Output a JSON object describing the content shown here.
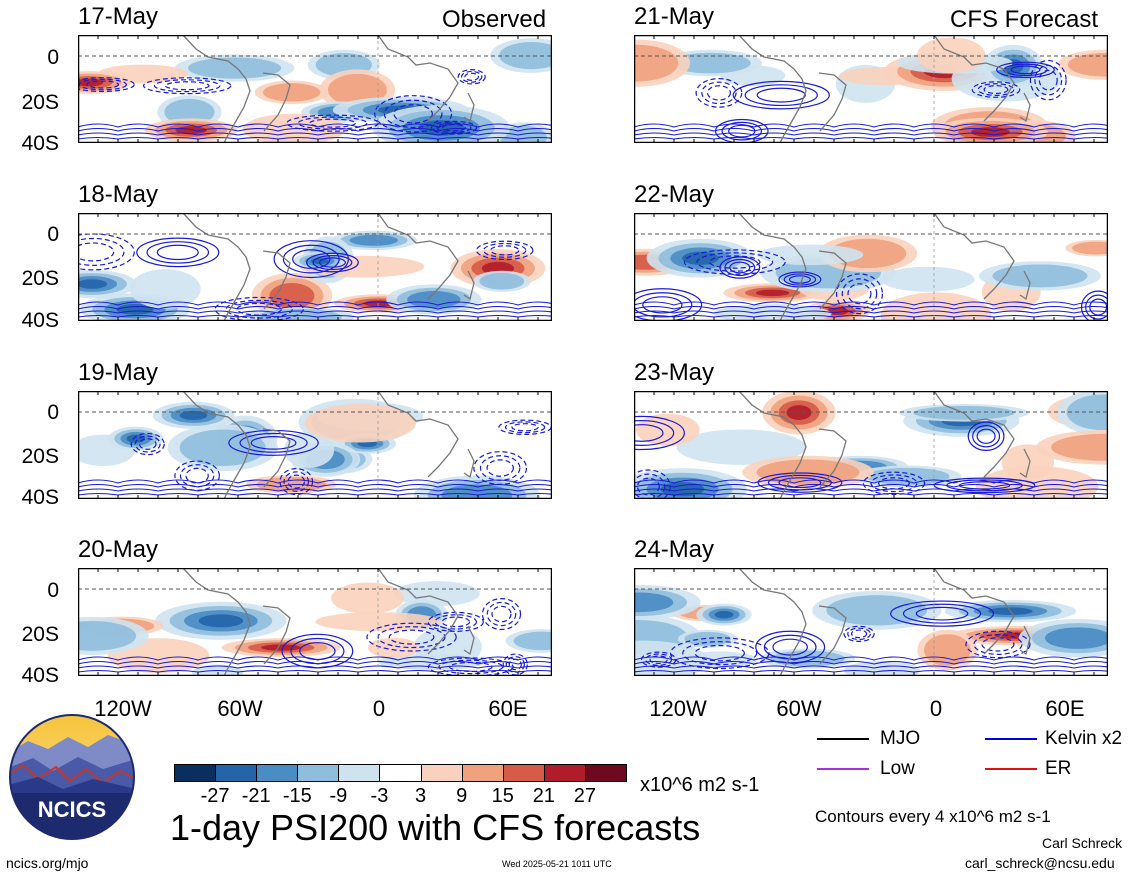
{
  "header": {
    "observed": "Observed",
    "forecast": "CFS Forecast"
  },
  "panels_left": [
    {
      "date": "17-May"
    },
    {
      "date": "18-May"
    },
    {
      "date": "19-May"
    },
    {
      "date": "20-May"
    }
  ],
  "panels_right": [
    {
      "date": "21-May"
    },
    {
      "date": "22-May"
    },
    {
      "date": "23-May"
    },
    {
      "date": "24-May"
    }
  ],
  "axes": {
    "y_ticks": [
      "0",
      "20S",
      "40S"
    ],
    "x_ticks": [
      "120W",
      "60W",
      "0",
      "60E"
    ]
  },
  "colorbar": {
    "levels": [
      "-27",
      "-21",
      "-15",
      "-9",
      "-3",
      "3",
      "9",
      "15",
      "21",
      "27"
    ],
    "colors": [
      "#0a2f5e",
      "#2464a8",
      "#4a8cc4",
      "#8fbedd",
      "#cfe3ef",
      "#ffffff",
      "#f9d2bd",
      "#f0a27f",
      "#d65b48",
      "#b01d2a",
      "#6e0a1d"
    ],
    "units": "x10^6 m2 s-1"
  },
  "legend": {
    "mjo": "MJO",
    "kelvin": "Kelvin x2",
    "low": "Low",
    "er": "ER",
    "colors": {
      "mjo": "#000000",
      "kelvin": "#0000dd",
      "low": "#a030e0",
      "er": "#dd1111"
    }
  },
  "title": "1-day PSI200 with CFS forecasts",
  "contour_note": "Contours every 4 x10^6 m2 s-1",
  "author": "Carl Schreck",
  "email": "carl_schreck@ncsu.edu",
  "site": "ncics.org/mjo",
  "timestamp": "Wed 2025-05-21 1011 UTC",
  "logo_text": "NCICS"
}
